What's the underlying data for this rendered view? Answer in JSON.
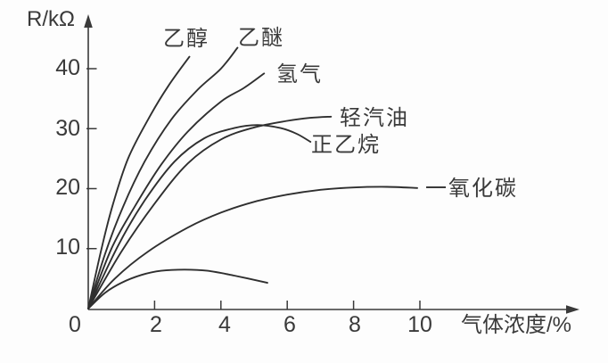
{
  "figure": {
    "y_axis_label": "R/kΩ",
    "x_axis_label": "气体浓度/%",
    "x_tick_labels": [
      "0",
      "2",
      "4",
      "6",
      "8",
      "10"
    ],
    "y_tick_labels": [
      "10",
      "20",
      "30",
      "40"
    ]
  },
  "chart_data": {
    "type": "line",
    "title": "",
    "xlabel": "气体浓度/%",
    "ylabel": "R/kΩ",
    "xlim": [
      0,
      14.5
    ],
    "ylim": [
      0,
      48
    ],
    "x_ticks": [
      0,
      2,
      4,
      6,
      8,
      10
    ],
    "y_ticks": [
      0,
      10,
      20,
      30,
      40
    ],
    "grid": false,
    "legend_position": "inline-labels-at-curve-ends",
    "curve_color": "#2f2f2f",
    "axis_color": "#3a3a3a",
    "series": [
      {
        "id": "ethanol",
        "name": "乙醇",
        "points": [
          [
            0,
            0
          ],
          [
            0.4,
            10
          ],
          [
            0.75,
            17.5
          ],
          [
            1.2,
            25
          ],
          [
            1.8,
            31.5
          ],
          [
            2.4,
            37
          ],
          [
            3.05,
            42
          ]
        ]
      },
      {
        "id": "ether",
        "name": "乙醚",
        "points": [
          [
            0,
            0
          ],
          [
            0.5,
            9
          ],
          [
            1.05,
            17
          ],
          [
            1.7,
            24.5
          ],
          [
            2.5,
            31.5
          ],
          [
            3.3,
            36.5
          ],
          [
            4.0,
            40
          ],
          [
            4.5,
            43.5
          ]
        ]
      },
      {
        "id": "hydrogen",
        "name": "氢气",
        "points": [
          [
            0,
            0
          ],
          [
            0.7,
            10
          ],
          [
            1.4,
            17
          ],
          [
            2.2,
            24
          ],
          [
            3.0,
            29.5
          ],
          [
            4.0,
            34.5
          ],
          [
            4.7,
            36.8
          ],
          [
            5.3,
            39.2
          ]
        ]
      },
      {
        "id": "light-gasoline",
        "name": "轻汽油",
        "points": [
          [
            0,
            0
          ],
          [
            1.0,
            9.5
          ],
          [
            2.0,
            17.5
          ],
          [
            3.0,
            24.2
          ],
          [
            4.0,
            28.2
          ],
          [
            5.0,
            30.2
          ],
          [
            6.0,
            31.3
          ],
          [
            6.7,
            31.8
          ],
          [
            7.32,
            32.0
          ]
        ]
      },
      {
        "id": "n-ethane",
        "name": "正乙烷",
        "points": [
          [
            0,
            0
          ],
          [
            0.9,
            10.5
          ],
          [
            1.7,
            18
          ],
          [
            2.6,
            24.5
          ],
          [
            3.5,
            28.4
          ],
          [
            4.4,
            30.1
          ],
          [
            5.1,
            30.6
          ],
          [
            5.8,
            30.1
          ],
          [
            6.3,
            29.1
          ],
          [
            6.7,
            27.8
          ]
        ]
      },
      {
        "id": "carbon-monoxide",
        "name": "一氧化碳",
        "points": [
          [
            0,
            0
          ],
          [
            0.8,
            5
          ],
          [
            1.8,
            9.5
          ],
          [
            3.0,
            13.5
          ],
          [
            4.0,
            16
          ],
          [
            5.0,
            17.8
          ],
          [
            6.0,
            19
          ],
          [
            7.0,
            19.8
          ],
          [
            8.0,
            20.2
          ],
          [
            9.0,
            20.3
          ],
          [
            9.92,
            20.1
          ]
        ]
      },
      {
        "id": "unlabeled",
        "name": "",
        "points": [
          [
            0,
            0
          ],
          [
            0.5,
            2.6
          ],
          [
            1.0,
            4.3
          ],
          [
            1.6,
            5.6
          ],
          [
            2.2,
            6.3
          ],
          [
            2.9,
            6.5
          ],
          [
            3.6,
            6.3
          ],
          [
            4.4,
            5.5
          ],
          [
            5.4,
            4.3
          ]
        ]
      }
    ]
  }
}
